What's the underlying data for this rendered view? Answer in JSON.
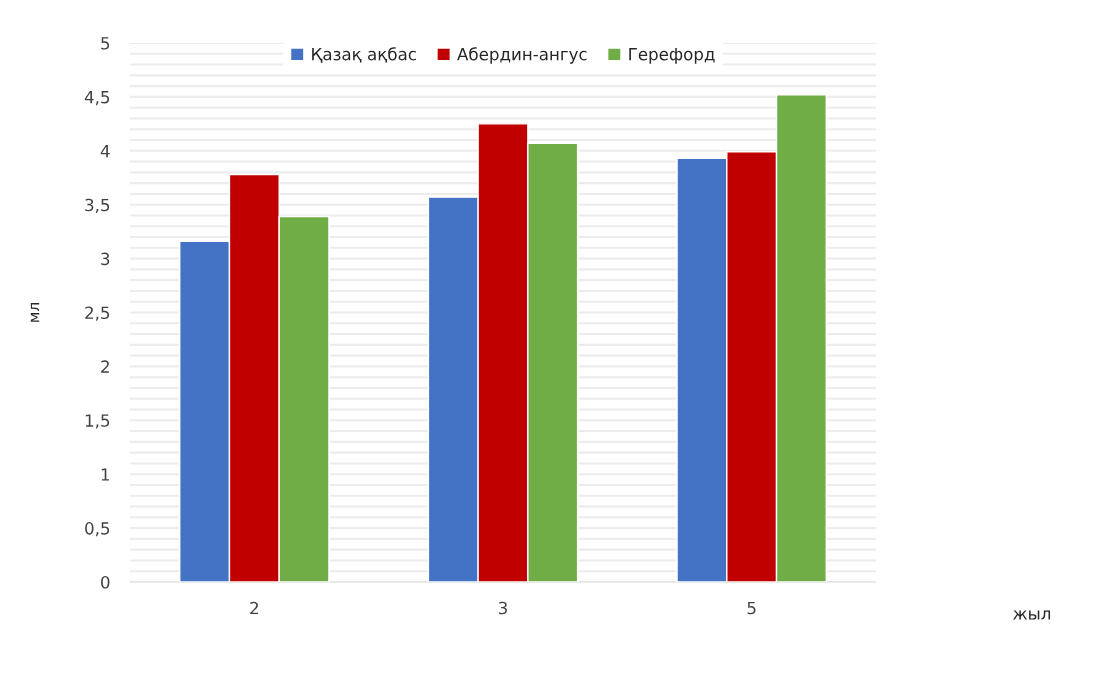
{
  "chart_data": {
    "type": "bar",
    "categories": [
      "2",
      "3",
      "5"
    ],
    "annotations": [
      "жыл"
    ],
    "ylabel": "мл",
    "series": [
      {
        "name": "Қазақ ақбас",
        "color": "#4472c4",
        "values": [
          3.16,
          3.57,
          3.93
        ]
      },
      {
        "name": "Абердин-ангус",
        "color": "#c00000",
        "values": [
          3.78,
          4.25,
          3.99
        ]
      },
      {
        "name": "Герефорд",
        "color": "#70ad47",
        "values": [
          3.39,
          4.07,
          4.52
        ]
      }
    ],
    "ylim": [
      0,
      5
    ],
    "yticks": [
      0,
      {
        "value": 0.1,
        "label": null
      },
      {
        "value": 0.2,
        "label": null
      },
      {
        "value": 0.3,
        "label": null
      },
      {
        "value": 0.4,
        "label": null
      },
      {
        "value": 0.5,
        "label": "0,5"
      },
      {
        "value": 0.6,
        "label": null
      },
      {
        "value": 0.7,
        "label": null
      },
      {
        "value": 0.8,
        "label": null
      },
      {
        "value": 0.9,
        "label": null
      },
      1,
      {
        "value": 1.1,
        "label": null
      },
      {
        "value": 1.2,
        "label": null
      },
      {
        "value": 1.3,
        "label": null
      },
      {
        "value": 1.4,
        "label": null
      },
      {
        "value": 1.5,
        "label": "1,5"
      },
      {
        "value": 1.6,
        "label": null
      },
      {
        "value": 1.7,
        "label": null
      },
      {
        "value": 1.8,
        "label": null
      },
      {
        "value": 1.9,
        "label": null
      },
      2,
      {
        "value": 2.1,
        "label": null
      },
      {
        "value": 2.2,
        "label": null
      },
      {
        "value": 2.3,
        "label": null
      },
      {
        "value": 2.4,
        "label": null
      },
      {
        "value": 2.5,
        "label": "2,5"
      },
      {
        "value": 2.6,
        "label": null
      },
      {
        "value": 2.7,
        "label": null
      },
      {
        "value": 2.8,
        "label": null
      },
      {
        "value": 2.9,
        "label": null
      },
      3,
      {
        "value": 3.1,
        "label": null
      },
      {
        "value": 3.2,
        "label": null
      },
      {
        "value": 3.3,
        "label": null
      },
      {
        "value": 3.4,
        "label": null
      },
      {
        "value": 3.5,
        "label": "3,5"
      },
      {
        "value": 3.6,
        "label": null
      },
      {
        "value": 3.7,
        "label": null
      },
      {
        "value": 3.8,
        "label": null
      },
      {
        "value": 3.9,
        "label": null
      },
      4,
      {
        "value": 4.1,
        "label": null
      },
      {
        "value": 4.2,
        "label": null
      },
      {
        "value": 4.3,
        "label": null
      },
      {
        "value": 4.4,
        "label": null
      },
      {
        "value": 4.5,
        "label": "4,5"
      },
      {
        "value": 4.6,
        "label": null
      },
      {
        "value": 4.7,
        "label": null
      },
      {
        "value": 4.8,
        "label": null
      },
      {
        "value": 4.9,
        "label": null
      },
      5
    ],
    "grid": "y",
    "legend": "top"
  }
}
